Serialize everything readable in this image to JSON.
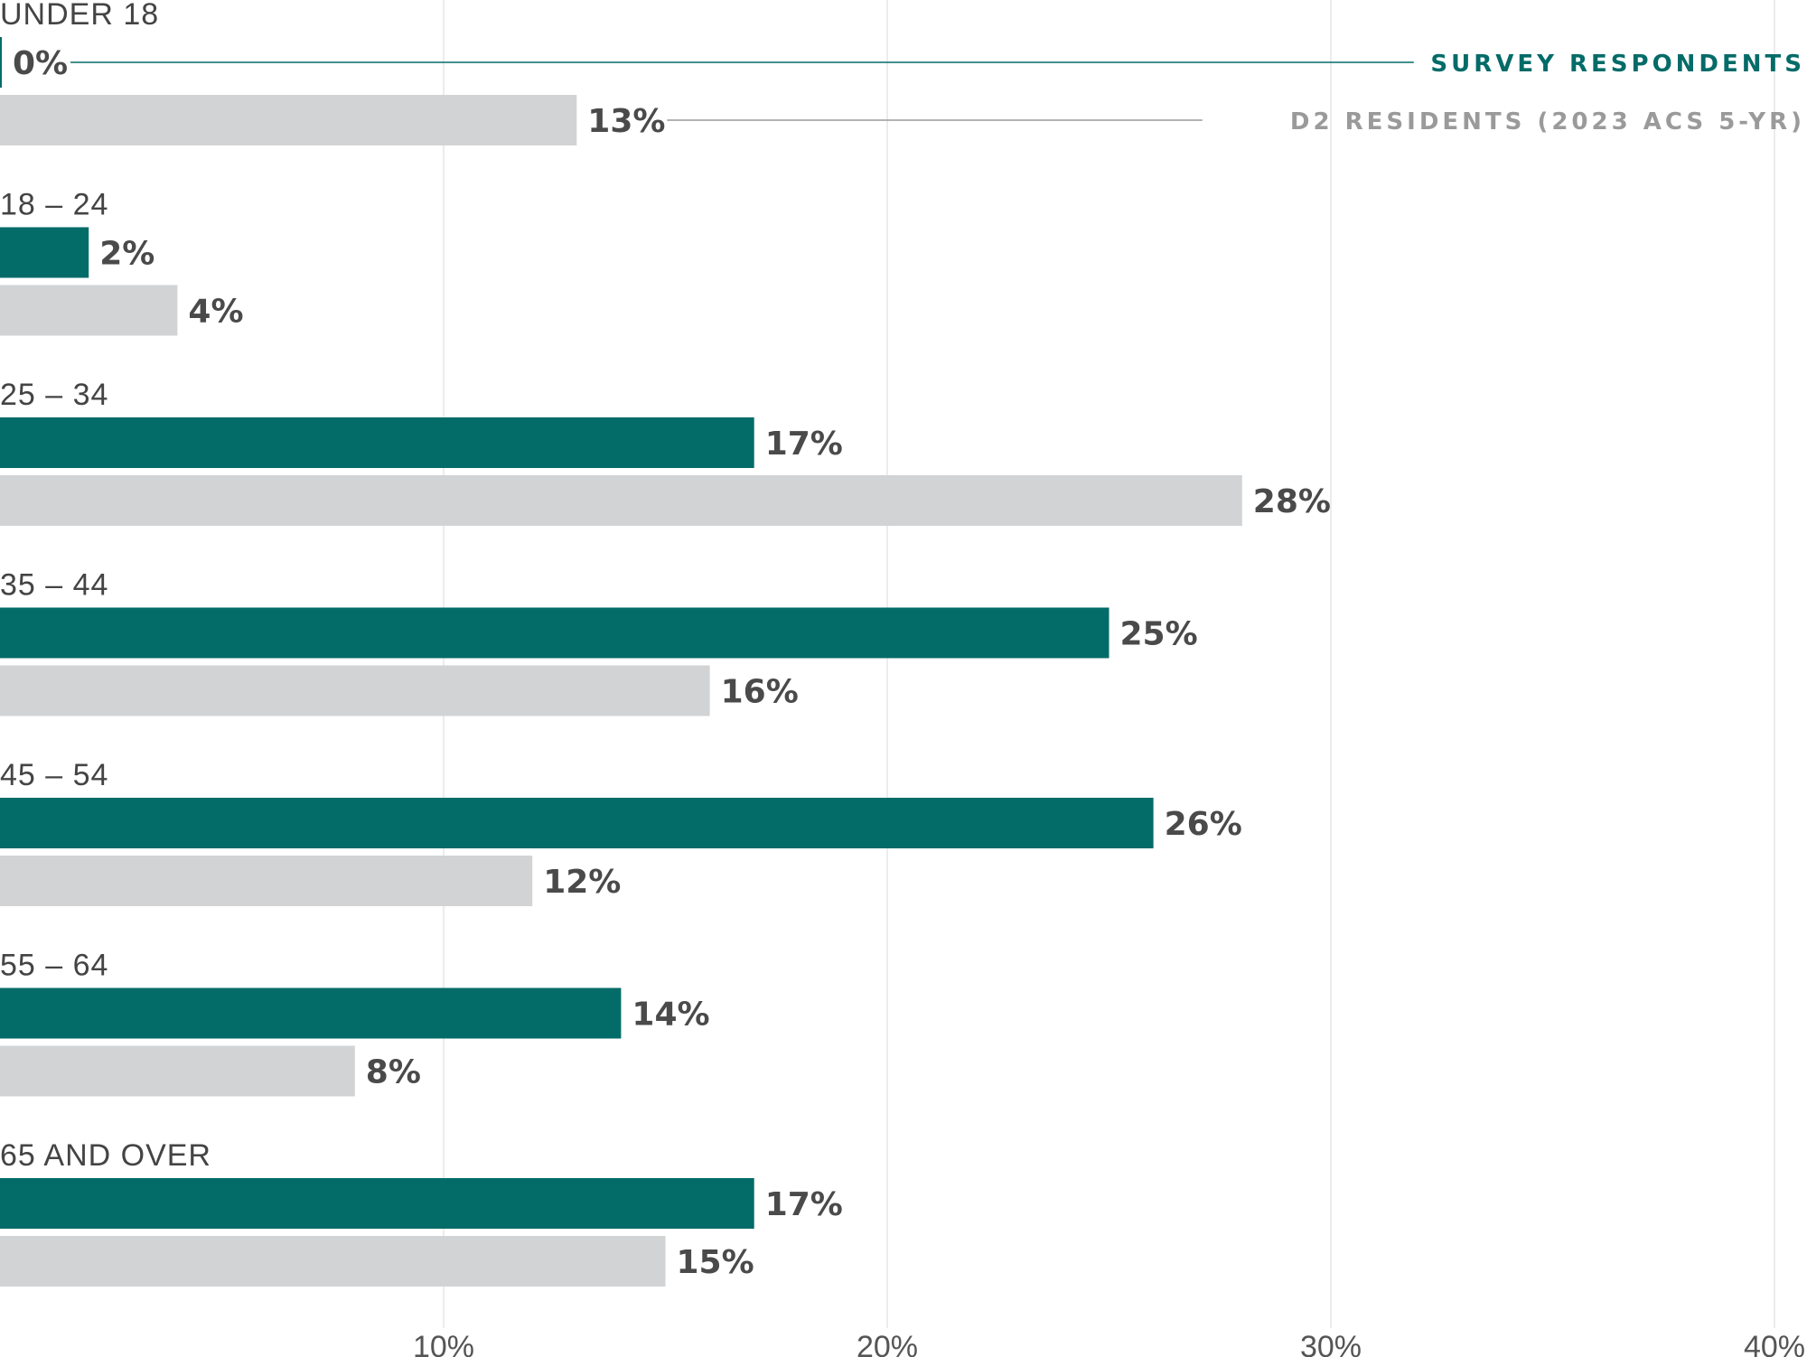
{
  "chart_data": {
    "type": "bar",
    "orientation": "horizontal",
    "categories": [
      "UNDER 18",
      "18 – 24",
      "25 – 34",
      "35 – 44",
      "45 – 54",
      "55 – 64",
      "65 AND OVER"
    ],
    "series": [
      {
        "name": "SURVEY RESPONDENTS",
        "color": "#036B68",
        "values": [
          0,
          2,
          17,
          25,
          26,
          14,
          17
        ],
        "labels": [
          "0%",
          "2%",
          "17%",
          "25%",
          "26%",
          "14%",
          "17%"
        ]
      },
      {
        "name": "D2 RESIDENTS (2023 ACS 5-YR)",
        "color": "#D2D3D4",
        "values": [
          13,
          4,
          28,
          16,
          12,
          8,
          15
        ],
        "labels": [
          "13%",
          "4%",
          "28%",
          "16%",
          "12%",
          "8%",
          "15%"
        ]
      }
    ],
    "xlim": [
      0,
      40
    ],
    "xticks": [
      10,
      20,
      30,
      40
    ],
    "xtick_labels": [
      "10%",
      "20%",
      "30%",
      "40%"
    ],
    "grid": true,
    "legend_placement": "inline-top-right",
    "legend_colors": {
      "survey": "#036B68",
      "residents": "#9A9A9A"
    }
  }
}
